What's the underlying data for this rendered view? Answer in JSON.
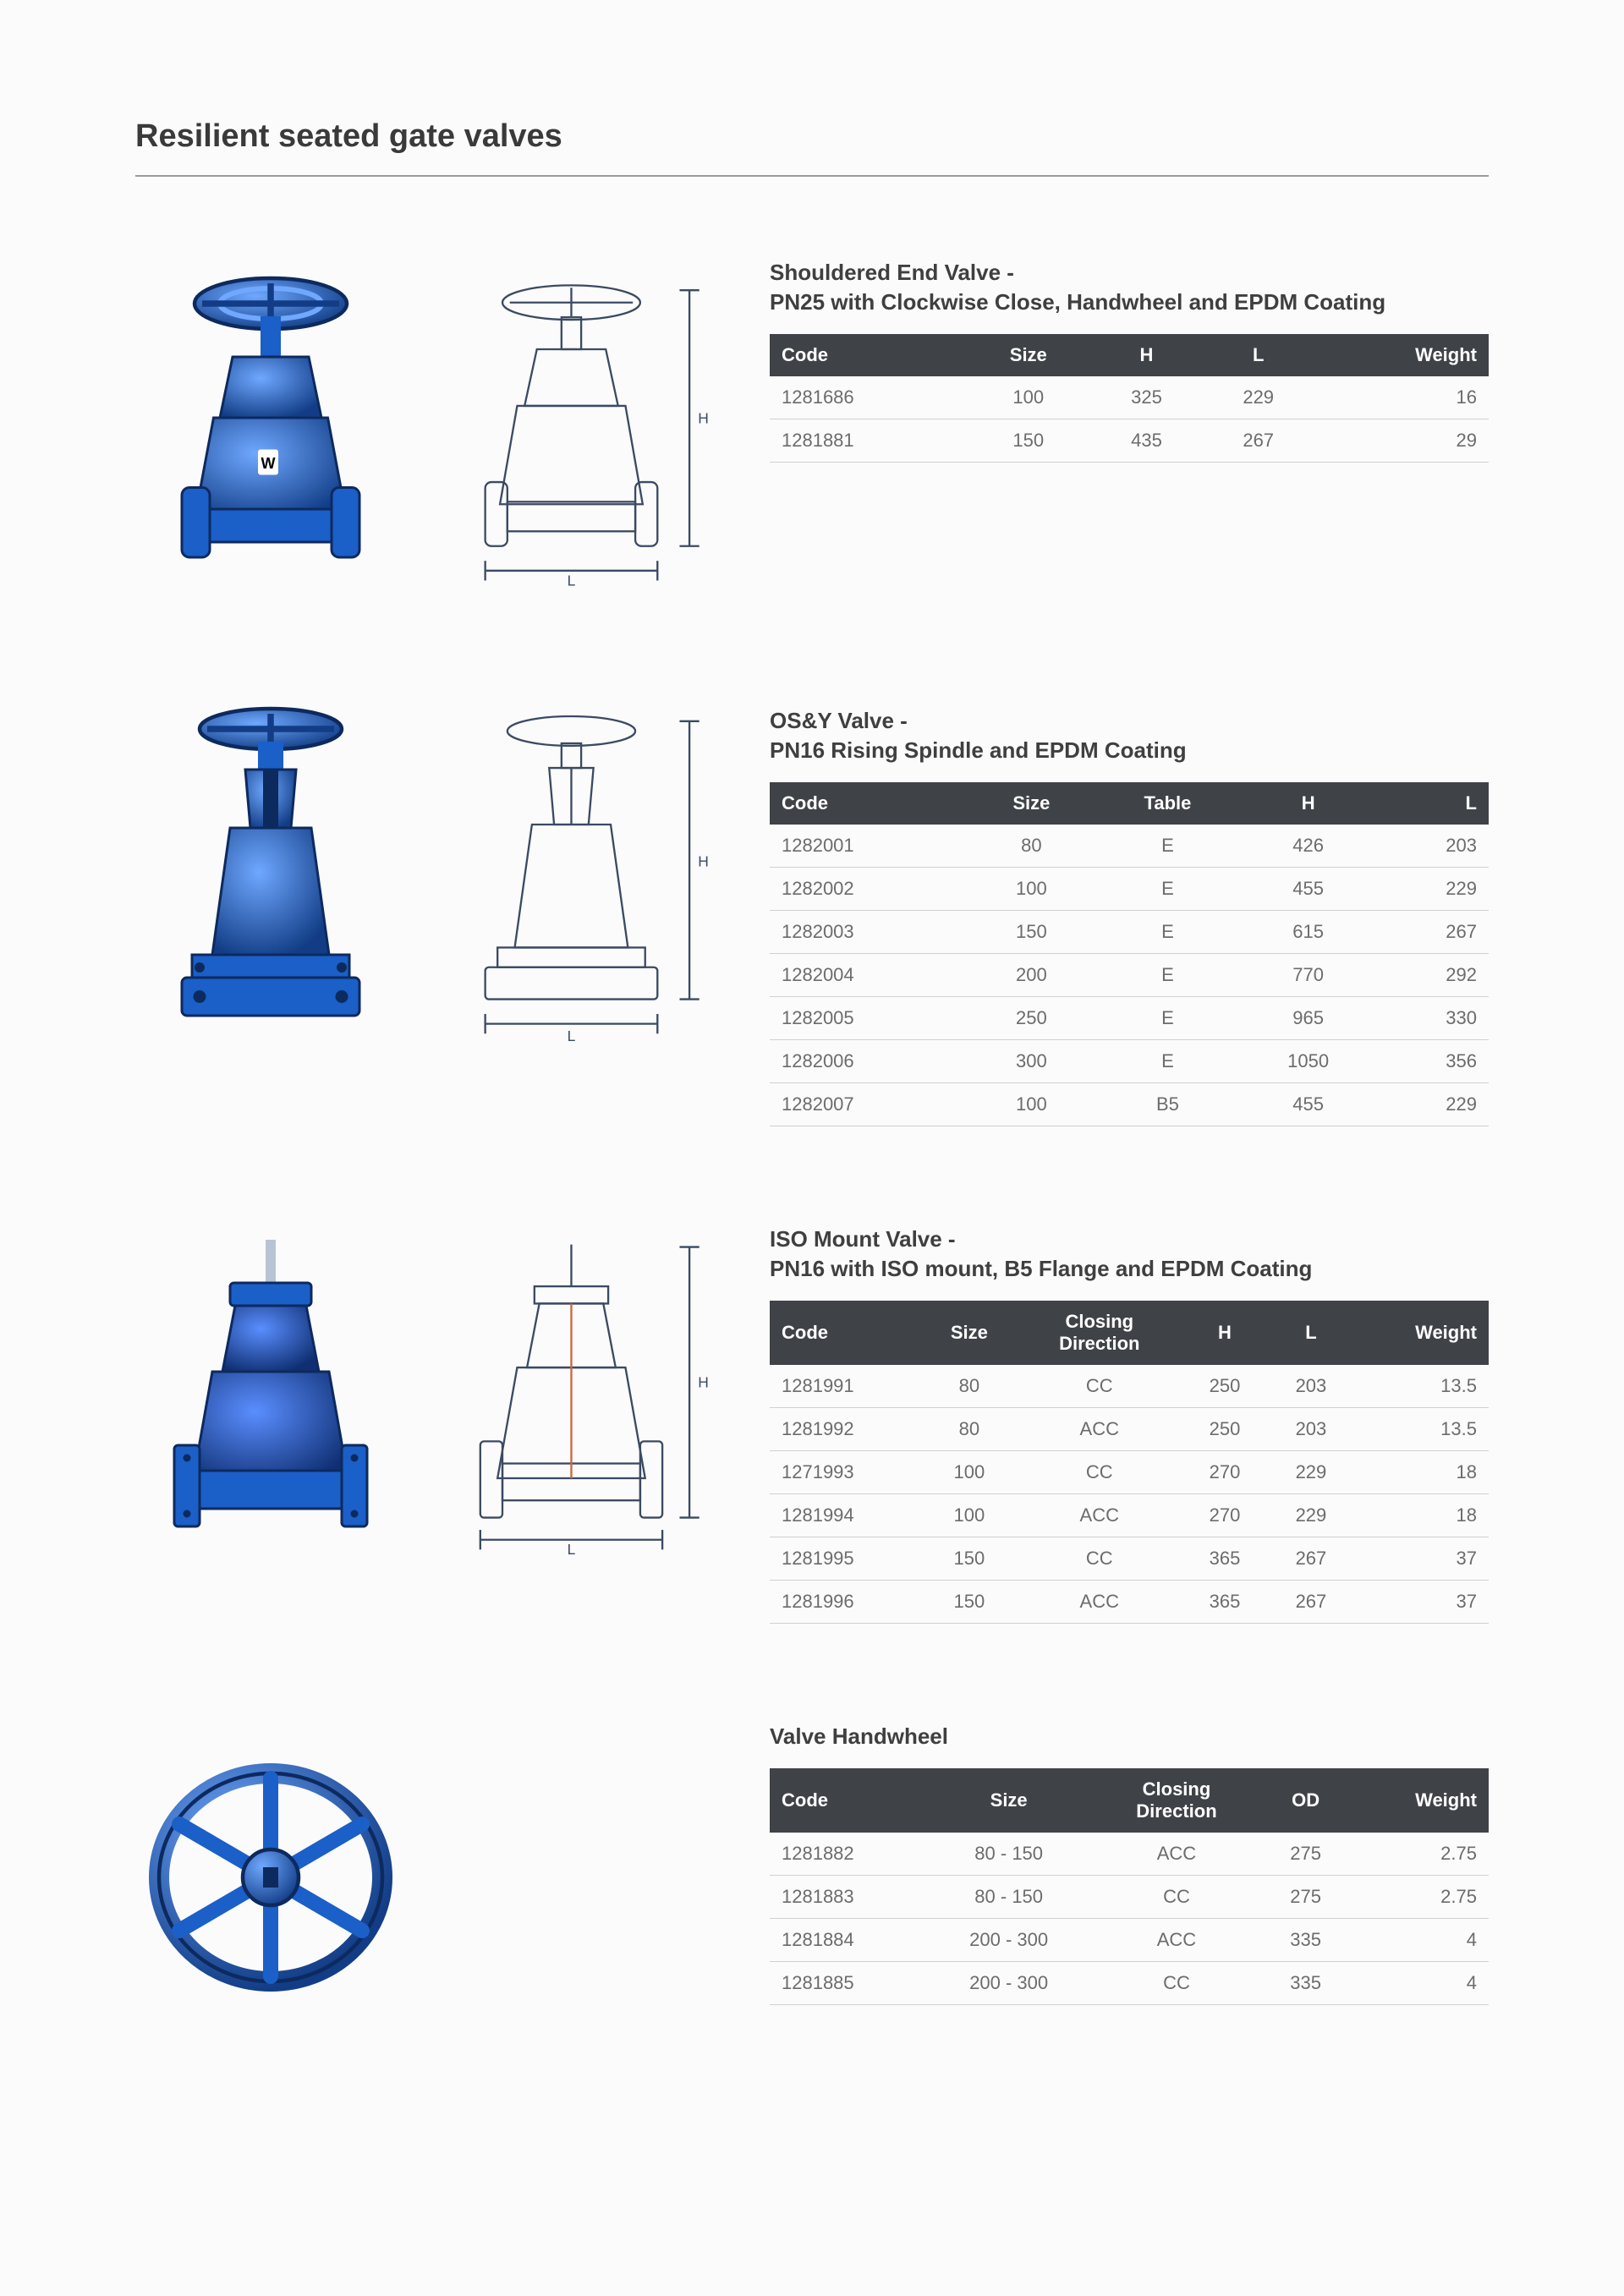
{
  "page_title": "Resilient seated gate valves",
  "theme": {
    "header_bg": "#3f4247",
    "header_fg": "#ffffff",
    "row_border": "#d0d0d0",
    "text": "#6c6c6c",
    "title_color": "#3f3f3f",
    "product_blue": "#1b5fc8",
    "product_blue_dark": "#123d86",
    "diagram_stroke": "#3b4a63",
    "background": "#fbfbfb"
  },
  "sections": [
    {
      "title": "Shouldered End Valve -\nPN25 with Clockwise Close, Handwheel and EPDM Coating",
      "columns": [
        {
          "label": "Code",
          "align": "left"
        },
        {
          "label": "Size",
          "align": "center"
        },
        {
          "label": "H",
          "align": "center"
        },
        {
          "label": "L",
          "align": "center"
        },
        {
          "label": "Weight",
          "align": "right"
        }
      ],
      "rows": [
        [
          "1281686",
          "100",
          "325",
          "229",
          "16"
        ],
        [
          "1281881",
          "150",
          "435",
          "267",
          "29"
        ]
      ]
    },
    {
      "title": "OS&Y Valve -\nPN16 Rising Spindle and EPDM Coating",
      "columns": [
        {
          "label": "Code",
          "align": "left"
        },
        {
          "label": "Size",
          "align": "center"
        },
        {
          "label": "Table",
          "align": "center"
        },
        {
          "label": "H",
          "align": "center"
        },
        {
          "label": "L",
          "align": "right"
        }
      ],
      "rows": [
        [
          "1282001",
          "80",
          "E",
          "426",
          "203"
        ],
        [
          "1282002",
          "100",
          "E",
          "455",
          "229"
        ],
        [
          "1282003",
          "150",
          "E",
          "615",
          "267"
        ],
        [
          "1282004",
          "200",
          "E",
          "770",
          "292"
        ],
        [
          "1282005",
          "250",
          "E",
          "965",
          "330"
        ],
        [
          "1282006",
          "300",
          "E",
          "1050",
          "356"
        ],
        [
          "1282007",
          "100",
          "B5",
          "455",
          "229"
        ]
      ]
    },
    {
      "title": "ISO Mount Valve -\nPN16 with ISO mount, B5 Flange and EPDM Coating",
      "columns": [
        {
          "label": "Code",
          "align": "left"
        },
        {
          "label": "Size",
          "align": "center"
        },
        {
          "label": "Closing\nDirection",
          "align": "center"
        },
        {
          "label": "H",
          "align": "center"
        },
        {
          "label": "L",
          "align": "center"
        },
        {
          "label": "Weight",
          "align": "right"
        }
      ],
      "rows": [
        [
          "1281991",
          "80",
          "CC",
          "250",
          "203",
          "13.5"
        ],
        [
          "1281992",
          "80",
          "ACC",
          "250",
          "203",
          "13.5"
        ],
        [
          "1271993",
          "100",
          "CC",
          "270",
          "229",
          "18"
        ],
        [
          "1281994",
          "100",
          "ACC",
          "270",
          "229",
          "18"
        ],
        [
          "1281995",
          "150",
          "CC",
          "365",
          "267",
          "37"
        ],
        [
          "1281996",
          "150",
          "ACC",
          "365",
          "267",
          "37"
        ]
      ]
    },
    {
      "title": "Valve Handwheel",
      "columns": [
        {
          "label": "Code",
          "align": "left"
        },
        {
          "label": "Size",
          "align": "center"
        },
        {
          "label": "Closing\nDirection",
          "align": "center"
        },
        {
          "label": "OD",
          "align": "center"
        },
        {
          "label": "Weight",
          "align": "right"
        }
      ],
      "rows": [
        [
          "1281882",
          "80 - 150",
          "ACC",
          "275",
          "2.75"
        ],
        [
          "1281883",
          "80 - 150",
          "CC",
          "275",
          "2.75"
        ],
        [
          "1281884",
          "200 - 300",
          "ACC",
          "335",
          "4"
        ],
        [
          "1281885",
          "200 - 300",
          "CC",
          "335",
          "4"
        ]
      ]
    }
  ]
}
